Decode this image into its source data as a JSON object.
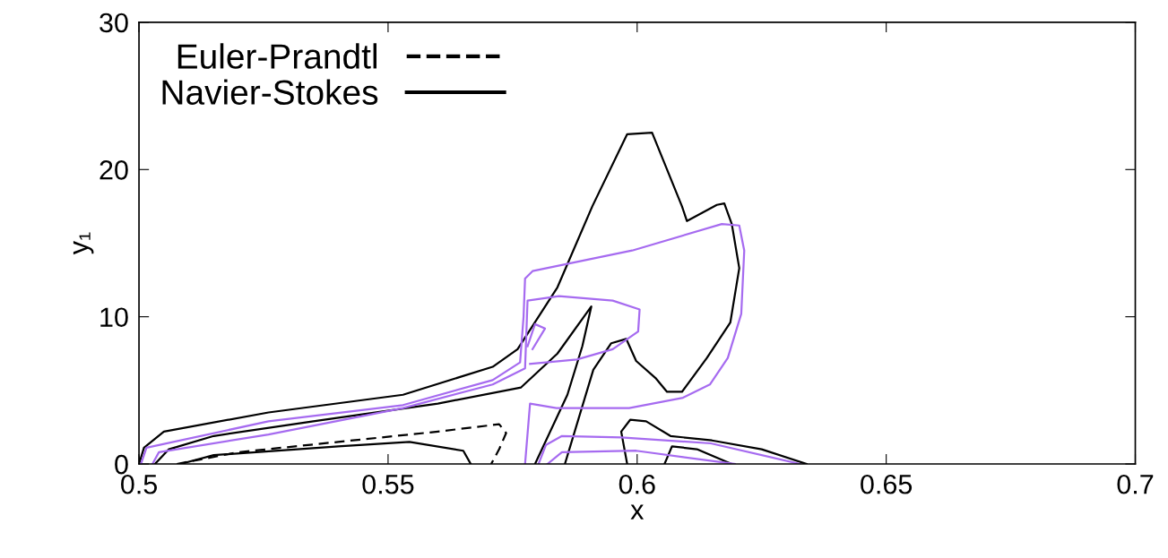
{
  "chart_data": {
    "type": "line",
    "xlabel": "x",
    "ylabel": "y₁",
    "xlim": [
      0.5,
      0.7
    ],
    "xticks": [
      0.5,
      0.55,
      0.6,
      0.65,
      0.7
    ],
    "ylim": [
      0,
      30
    ],
    "yticks": [
      0,
      10,
      20,
      30
    ],
    "grid": false,
    "legend": "top left",
    "marker": "none",
    "series": [
      {
        "name": "Euler-Prandtl",
        "color": "#000000",
        "line_style": "dashed",
        "x": [
          0.5076,
          0.52,
          0.54,
          0.56,
          0.5723,
          0.5737,
          0.5723,
          0.5707
        ],
        "values": [
          0,
          0.8,
          1.5,
          2.2,
          2.7,
          2.1,
          1.0,
          0
        ]
      },
      {
        "name": "Navier-Stokes",
        "color": "#000000",
        "line_style": "solid",
        "x": [
          0.5,
          0.501,
          0.505,
          0.526,
          0.553,
          0.571,
          0.576,
          0.584,
          0.591,
          0.598,
          0.603,
          0.609,
          0.61,
          0.616,
          0.6175,
          0.619,
          0.6205,
          0.6187,
          0.614,
          0.609,
          0.606,
          0.6038,
          0.5998,
          0.5978,
          0.5948,
          0.5912,
          0.5855
        ],
        "values": [
          0,
          1.1,
          2.2,
          3.5,
          4.7,
          6.6,
          7.8,
          12,
          17.5,
          22.4,
          22.5,
          17.5,
          16.5,
          17.6,
          17.7,
          16.3,
          13.3,
          9.6,
          7.2,
          4.9,
          4.9,
          5.8,
          7.0,
          8.5,
          8.2,
          6.4,
          0
        ]
      },
      {
        "color": "#000000",
        "line_style": "solid",
        "x": [
          0.5032,
          0.506,
          0.515,
          0.535,
          0.56,
          0.5767,
          0.584,
          0.5908,
          0.589,
          0.586,
          0.5795
        ],
        "values": [
          0,
          1.0,
          1.9,
          2.9,
          4.1,
          5.2,
          7.5,
          10.7,
          8.0,
          4.7,
          0
        ]
      },
      {
        "color": "#000000",
        "line_style": "solid",
        "x": [
          0.5083,
          0.515,
          0.54,
          0.5543,
          0.5651,
          0.5666
        ],
        "values": [
          0,
          0.6,
          1.2,
          1.5,
          0.9,
          0
        ]
      },
      {
        "color": "#000000",
        "line_style": "solid",
        "x": [
          0.598,
          0.5968,
          0.5986,
          0.6018,
          0.6067,
          0.615,
          0.625,
          0.634
        ],
        "values": [
          0,
          2.2,
          3.0,
          2.9,
          1.9,
          1.6,
          1.0,
          0
        ]
      },
      {
        "color": "#000000",
        "line_style": "solid",
        "x": [
          0.6055,
          0.607,
          0.612,
          0.619
        ],
        "values": [
          0,
          1.2,
          1.0,
          0
        ]
      },
      {
        "color": "#a66bf0",
        "line_style": "solid",
        "x": [
          0.5004,
          0.5015,
          0.526,
          0.553,
          0.571,
          0.5765,
          0.5772,
          0.5775,
          0.579,
          0.599,
          0.617,
          0.6205,
          0.6215,
          0.6209,
          0.6182,
          0.6146,
          0.6092,
          0.5984,
          0.5838,
          0.5785,
          0.5775
        ],
        "values": [
          0,
          1.1,
          2.9,
          4.0,
          5.7,
          6.9,
          10,
          12.6,
          13.1,
          14.5,
          16.3,
          16.2,
          14.5,
          10.2,
          7.2,
          5.4,
          4.5,
          3.8,
          3.8,
          4.1,
          0
        ]
      },
      {
        "color": "#a66bf0",
        "line_style": "solid",
        "x": [
          0.5027,
          0.504,
          0.526,
          0.553,
          0.571,
          0.5775,
          0.578,
          0.5843,
          0.5951,
          0.6005,
          0.6002,
          0.5951,
          0.5879,
          0.5785
        ],
        "values": [
          0,
          0.8,
          2.0,
          3.8,
          5.4,
          6.5,
          11.1,
          11.4,
          11.1,
          10.5,
          9.0,
          7.8,
          7.1,
          6.8
        ]
      },
      {
        "color": "#a66bf0",
        "line_style": "solid",
        "x": [
          0.578,
          0.5795,
          0.5815,
          0.579
        ],
        "values": [
          8.0,
          9.5,
          9.2,
          7.8
        ]
      },
      {
        "color": "#a66bf0",
        "line_style": "solid",
        "x": [
          0.5802,
          0.5817,
          0.5849,
          0.5968,
          0.6148,
          0.6327
        ],
        "values": [
          0,
          1.3,
          1.9,
          1.8,
          1.4,
          0
        ]
      },
      {
        "color": "#a66bf0",
        "line_style": "solid",
        "x": [
          0.582,
          0.5849,
          0.5998,
          0.6196
        ],
        "values": [
          0,
          0.8,
          0.9,
          0
        ]
      }
    ]
  }
}
